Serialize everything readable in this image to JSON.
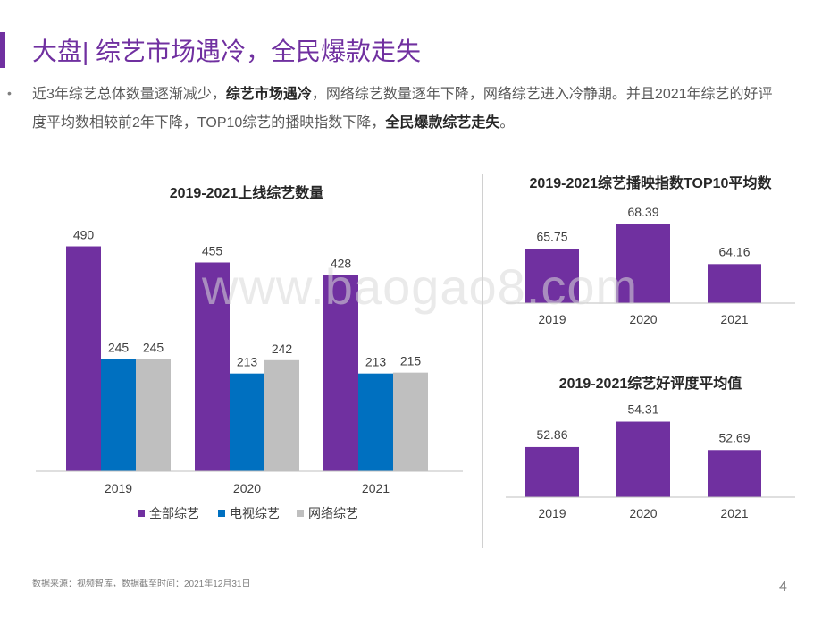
{
  "header": {
    "title": "大盘| 综艺市场遇冷，全民爆款走失"
  },
  "summary": {
    "bullet": "•",
    "p1": "近3年综艺总体数量逐渐减少，",
    "b1": "综艺市场遇冷",
    "p2": "，网络综艺数量逐年下降，网络综艺进入冷静期。并且2021年综艺的好评度平均数相较前2年下降，TOP10综艺的播映指数下降，",
    "b2": "全民爆款综艺走失",
    "p3": "。"
  },
  "watermark": "www.baogao8.com",
  "colors": {
    "accent": "#7030a0",
    "tv": "#0070c0",
    "net": "#bfbfbf",
    "axis": "#bfbfbf",
    "text": "#595959"
  },
  "chart_data": [
    {
      "type": "bar",
      "title": "2019-2021上线综艺数量",
      "categories": [
        "2019",
        "2020",
        "2021"
      ],
      "series": [
        {
          "name": "全部综艺",
          "values": [
            490,
            455,
            428
          ]
        },
        {
          "name": "电视综艺",
          "values": [
            245,
            213,
            213
          ]
        },
        {
          "name": "网络综艺",
          "values": [
            245,
            242,
            215
          ]
        }
      ],
      "legend": "bottom",
      "ylim": [
        0,
        530
      ]
    },
    {
      "type": "bar",
      "title": "2019-2021综艺播映指数TOP10平均数",
      "categories": [
        "2019",
        "2020",
        "2021"
      ],
      "values": [
        65.75,
        68.39,
        64.16
      ],
      "ylim": [
        60,
        70
      ]
    },
    {
      "type": "bar",
      "title": "2019-2021综艺好评度平均值",
      "categories": [
        "2019",
        "2020",
        "2021"
      ],
      "values": [
        52.86,
        54.31,
        52.69
      ],
      "ylim": [
        50,
        55
      ]
    }
  ],
  "footer": {
    "source": "数据来源：视频智库，数据截至时间：2021年12月31日",
    "page": "4"
  }
}
